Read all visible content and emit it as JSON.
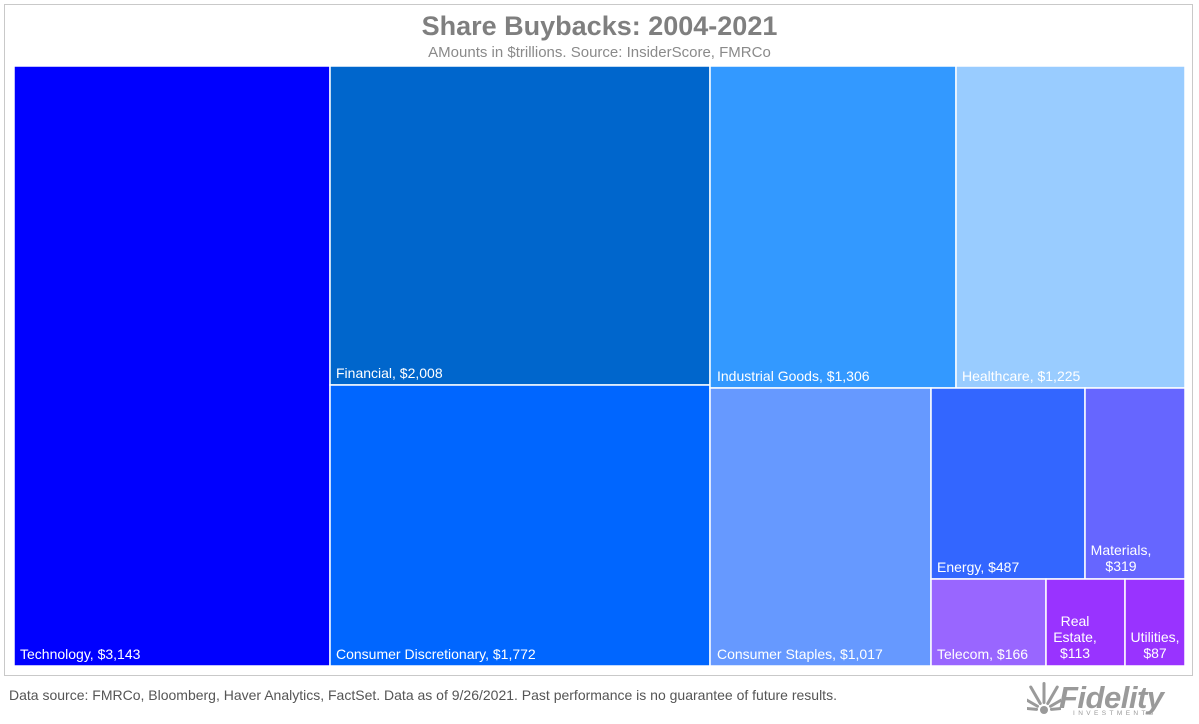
{
  "title": "Share Buybacks: 2004-2021",
  "subtitle": "AMounts in $trillions. Source: InsiderScore, FMRCo",
  "footer": "Data source: FMRCo, Bloomberg, Haver Analytics, FactSet. Data as of 9/26/2021. Past performance is no guarantee of future results.",
  "logo": {
    "text": "Fidelity",
    "subtext": "INVESTMENTS",
    "icon": "fidelity-logo-icon"
  },
  "chart_data": {
    "type": "treemap",
    "title": "Share Buybacks: 2004-2021",
    "subtitle": "AMounts in $trillions. Source: InsiderScore, FMRCo",
    "items": [
      {
        "name": "Technology",
        "value": 3143,
        "label": "Technology, $3,143",
        "color": "#0000ff"
      },
      {
        "name": "Financial",
        "value": 2008,
        "label": "Financial, $2,008",
        "color": "#0066cc"
      },
      {
        "name": "Consumer Discretionary",
        "value": 1772,
        "label": "Consumer Discretionary, $1,772",
        "color": "#0066ff"
      },
      {
        "name": "Industrial Goods",
        "value": 1306,
        "label": "Industrial Goods, $1,306",
        "color": "#3399ff"
      },
      {
        "name": "Healthcare",
        "value": 1225,
        "label": "Healthcare, $1,225",
        "color": "#99ccff"
      },
      {
        "name": "Consumer Staples",
        "value": 1017,
        "label": "Consumer Staples, $1,017",
        "color": "#6699ff"
      },
      {
        "name": "Energy",
        "value": 487,
        "label": "Energy, $487",
        "color": "#3366ff"
      },
      {
        "name": "Materials",
        "value": 319,
        "label": "Materials, $319",
        "color": "#6666ff"
      },
      {
        "name": "Telecom",
        "value": 166,
        "label": "Telecom, $166",
        "color": "#9966ff"
      },
      {
        "name": "Real Estate",
        "value": 113,
        "label": "Real Estate, $113",
        "color": "#9933ff"
      },
      {
        "name": "Utilities",
        "value": 87,
        "label": "Utilities, $87",
        "color": "#9933ff"
      }
    ]
  }
}
